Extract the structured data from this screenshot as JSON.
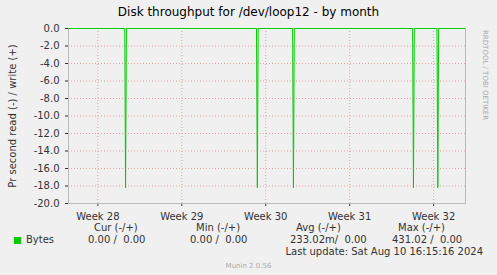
{
  "chart_data": {
    "type": "line",
    "title": "Disk throughput for /dev/loop12 - by month",
    "y_label": "Pr second read (-) / write (+)",
    "x": [
      27.65,
      28.32,
      28.33,
      28.34,
      29.89,
      29.9,
      29.91,
      30.32,
      30.33,
      30.34,
      31.75,
      31.76,
      31.77,
      32.04,
      32.05,
      32.06,
      32.38
    ],
    "series": [
      {
        "name": "Bytes",
        "color": "#00cc00",
        "values": [
          0,
          0,
          -18.2,
          0,
          0,
          -18.2,
          0,
          0,
          -18.2,
          0,
          0,
          -18.2,
          0,
          0,
          -18.2,
          0,
          0
        ]
      }
    ],
    "xlim": [
      27.65,
      32.38
    ],
    "xticks": [
      {
        "value": 28,
        "label": "Week 28"
      },
      {
        "value": 29,
        "label": "Week 29"
      },
      {
        "value": 30,
        "label": "Week 30"
      },
      {
        "value": 31,
        "label": "Week 31"
      },
      {
        "value": 32,
        "label": "Week 32"
      }
    ],
    "ylim": [
      -20,
      0
    ],
    "yticks": [
      {
        "value": 0,
        "label": "0.0"
      },
      {
        "value": -2,
        "label": "-2.0"
      },
      {
        "value": -4,
        "label": "-4.0"
      },
      {
        "value": -6,
        "label": "-6.0"
      },
      {
        "value": -8,
        "label": "-8.0"
      },
      {
        "value": -10,
        "label": "-10.0"
      },
      {
        "value": -12,
        "label": "-12.0"
      },
      {
        "value": -14,
        "label": "-14.0"
      },
      {
        "value": -16,
        "label": "-16.0"
      },
      {
        "value": -18,
        "label": "-18.0"
      },
      {
        "value": -20,
        "label": "-20.0"
      }
    ],
    "grid": true,
    "stats": {
      "headers": [
        "Cur (-/+)",
        "Min (-/+)",
        "Avg (-/+)",
        "Max (-/+)"
      ],
      "rows": [
        {
          "name": "Bytes",
          "values": [
            "0.00 /  0.00",
            "0.00 /  0.00",
            "233.02m/  0.00",
            "431.02 /  0.00"
          ]
        }
      ]
    },
    "last_update": "Last update: Sat Aug 10 16:15:16 2024",
    "footer": "Munin 2.0.56",
    "watermark": "RRDTOOL / TOBI OETIKER"
  }
}
